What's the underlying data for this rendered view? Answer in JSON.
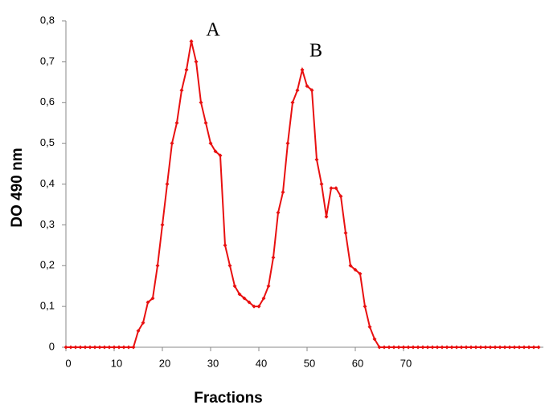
{
  "chart_data": {
    "type": "line",
    "x_label": "Fractions",
    "y_label": "DO 490 nm",
    "annotations": [
      "A",
      "B"
    ],
    "x": [
      0,
      1,
      2,
      3,
      4,
      5,
      6,
      7,
      8,
      9,
      10,
      11,
      12,
      13,
      14,
      15,
      16,
      17,
      18,
      19,
      20,
      21,
      22,
      23,
      24,
      25,
      26,
      27,
      28,
      29,
      30,
      31,
      32,
      33,
      34,
      35,
      36,
      37,
      38,
      39,
      40,
      41,
      42,
      43,
      44,
      45,
      46,
      47,
      48,
      49,
      50,
      51,
      52,
      53,
      54,
      55,
      56,
      57,
      58,
      59,
      60,
      61,
      62,
      63,
      64,
      65,
      66,
      67,
      68,
      69,
      70,
      71,
      72,
      73,
      74,
      75,
      76,
      77,
      78,
      79,
      80,
      81,
      82,
      83,
      84,
      85,
      86,
      87,
      88,
      89,
      90,
      91,
      92,
      93,
      94,
      95,
      96,
      97,
      98
    ],
    "series": [
      {
        "name": "DO 490 nm",
        "color": "#e81010",
        "values": [
          0,
          0,
          0,
          0,
          0,
          0,
          0,
          0,
          0,
          0,
          0,
          0,
          0,
          0,
          0,
          0.04,
          0.06,
          0.11,
          0.12,
          0.2,
          0.3,
          0.4,
          0.5,
          0.55,
          0.63,
          0.68,
          0.75,
          0.7,
          0.6,
          0.55,
          0.5,
          0.48,
          0.47,
          0.25,
          0.2,
          0.15,
          0.13,
          0.12,
          0.11,
          0.1,
          0.1,
          0.12,
          0.15,
          0.22,
          0.33,
          0.38,
          0.5,
          0.6,
          0.63,
          0.68,
          0.64,
          0.63,
          0.46,
          0.4,
          0.32,
          0.39,
          0.39,
          0.37,
          0.28,
          0.2,
          0.19,
          0.18,
          0.1,
          0.05,
          0.02,
          0,
          0,
          0,
          0,
          0,
          0,
          0,
          0,
          0,
          0,
          0,
          0,
          0,
          0,
          0,
          0,
          0,
          0,
          0,
          0,
          0,
          0,
          0,
          0,
          0,
          0,
          0,
          0,
          0,
          0,
          0,
          0,
          0,
          0
        ]
      }
    ],
    "xlim": [
      0,
      99
    ],
    "ylim": [
      0,
      0.8
    ],
    "xticks": [
      0,
      10,
      20,
      30,
      40,
      50,
      60,
      70
    ],
    "yticks": [
      0,
      {
        "value": 0.1,
        "label": "0,1"
      },
      {
        "value": 0.2,
        "label": "0,2"
      },
      {
        "value": 0.3,
        "label": "0,3"
      },
      {
        "value": 0.4,
        "label": "0,4"
      },
      {
        "value": 0.5,
        "label": "0,5"
      },
      {
        "value": 0.6,
        "label": "0,6"
      },
      {
        "value": 0.7,
        "label": "0,7"
      },
      {
        "value": 0.8,
        "label": "0,8"
      }
    ],
    "grid": false
  }
}
